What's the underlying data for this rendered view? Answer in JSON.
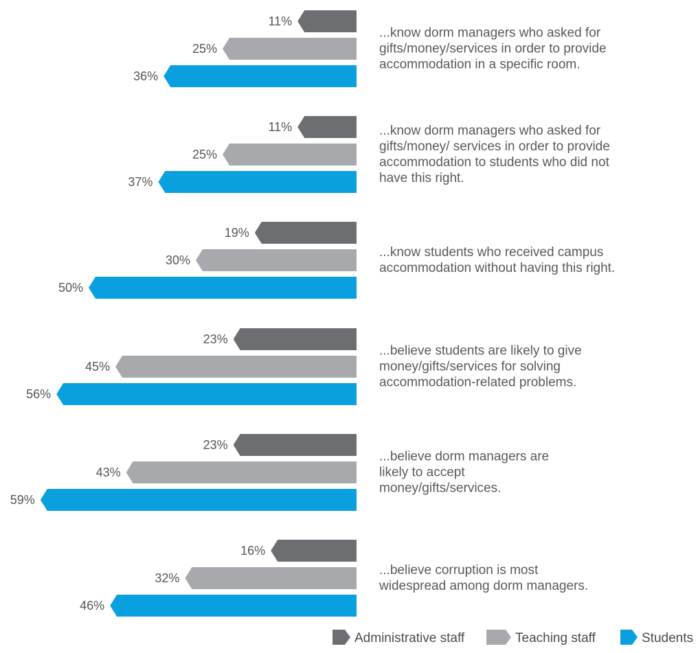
{
  "chart_data": {
    "type": "bar",
    "orientation": "horizontal",
    "categories": [
      "...know dorm managers who asked for gifts/money/services in order to provide accommodation in a specific room.",
      "...know dorm managers who asked for gifts/money/ services in order to provide accommodation to students who did not have this right.",
      "...know students who received campus accommodation without having this right.",
      "...believe students are likely to give money/gifts/services for solving accommodation-related problems.",
      "...believe dorm managers are likely to accept money/gifts/services.",
      "...believe corruption is most widespread among dorm managers."
    ],
    "category_lines": [
      [
        "...know dorm managers who asked for",
        "gifts/money/services in order to provide",
        "accommodation in a specific room."
      ],
      [
        "...know dorm managers who asked for",
        "gifts/money/ services in order to provide",
        "accommodation to students who did not",
        "have this right."
      ],
      [
        "...know students who received campus",
        "accommodation without having this right."
      ],
      [
        "...believe students are likely to give",
        "money/gifts/services for solving",
        "accommodation-related problems."
      ],
      [
        "...believe dorm managers are",
        "likely to accept",
        "money/gifts/services."
      ],
      [
        "...believe corruption is most",
        "widespread among dorm managers."
      ]
    ],
    "series": [
      {
        "name": "Administrative staff",
        "color": "#6d6e71",
        "values": [
          11,
          11,
          19,
          23,
          23,
          16
        ]
      },
      {
        "name": "Teaching staff",
        "color": "#a7a9ac",
        "values": [
          25,
          25,
          30,
          45,
          43,
          32
        ]
      },
      {
        "name": "Students",
        "color": "#0a9fdf",
        "values": [
          36,
          37,
          50,
          56,
          59,
          46
        ]
      }
    ],
    "value_suffix": "%",
    "legend_position": "bottom-right",
    "grid": false
  }
}
